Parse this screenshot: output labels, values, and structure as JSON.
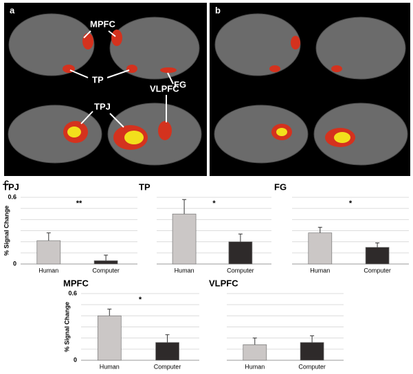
{
  "panel_labels": [
    "a",
    "b",
    "c"
  ],
  "brain_annotations": {
    "mpfc": "MPFC",
    "tp": "TP",
    "fg": "FG",
    "tpj": "TPJ",
    "vlpfc": "VLPFC"
  },
  "chart_data": [
    {
      "type": "bar",
      "title": "TPJ",
      "y_label": "% Signal Change",
      "categories": [
        "Human",
        "Computer"
      ],
      "values": [
        0.21,
        0.03
      ],
      "errors": [
        0.07,
        0.05
      ],
      "colors": [
        "#cbc7c6",
        "#2e2a2a"
      ],
      "ylim": [
        0,
        0.6
      ],
      "yticks": [
        0,
        0.6
      ],
      "gridlines": [
        0.1,
        0.2,
        0.3,
        0.4,
        0.5,
        0.6
      ],
      "annotation": "**"
    },
    {
      "type": "bar",
      "title": "TP",
      "categories": [
        "Human",
        "Computer"
      ],
      "values": [
        0.45,
        0.2
      ],
      "errors": [
        0.13,
        0.07
      ],
      "colors": [
        "#cbc7c6",
        "#2e2a2a"
      ],
      "ylim": [
        0,
        0.6
      ],
      "gridlines": [
        0.1,
        0.2,
        0.3,
        0.4,
        0.5,
        0.6
      ],
      "annotation": "*"
    },
    {
      "type": "bar",
      "title": "FG",
      "categories": [
        "Human",
        "Computer"
      ],
      "values": [
        0.28,
        0.15
      ],
      "errors": [
        0.05,
        0.04
      ],
      "colors": [
        "#cbc7c6",
        "#2e2a2a"
      ],
      "ylim": [
        0,
        0.6
      ],
      "gridlines": [
        0.1,
        0.2,
        0.3,
        0.4,
        0.5,
        0.6
      ],
      "annotation": "*"
    },
    {
      "type": "bar",
      "title": "MPFC",
      "y_label": "% Signal Change",
      "categories": [
        "Human",
        "Computer"
      ],
      "values": [
        0.4,
        0.16
      ],
      "errors": [
        0.06,
        0.07
      ],
      "colors": [
        "#cbc7c6",
        "#2e2a2a"
      ],
      "ylim": [
        0,
        0.6
      ],
      "yticks": [
        0,
        0.6
      ],
      "gridlines": [
        0.1,
        0.2,
        0.3,
        0.4,
        0.5,
        0.6
      ],
      "annotation": "*"
    },
    {
      "type": "bar",
      "title": "VLPFC",
      "categories": [
        "Human",
        "Computer"
      ],
      "values": [
        0.14,
        0.16
      ],
      "errors": [
        0.06,
        0.06
      ],
      "colors": [
        "#cbc7c6",
        "#2e2a2a"
      ],
      "ylim": [
        0,
        0.6
      ],
      "gridlines": [
        0.1,
        0.2,
        0.3,
        0.4,
        0.5,
        0.6
      ]
    }
  ]
}
